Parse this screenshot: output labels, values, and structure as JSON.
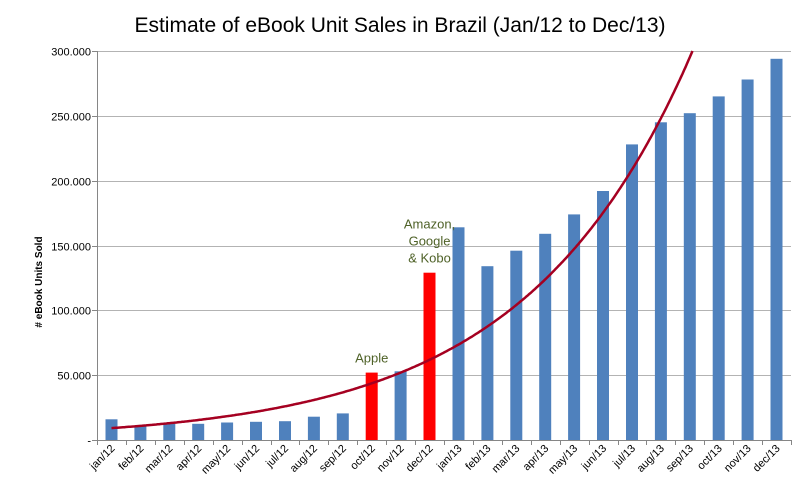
{
  "chart_data": {
    "type": "bar",
    "title": "Estimate of eBook Unit Sales in Brazil (Jan/12 to Dec/13)",
    "xlabel": "",
    "ylabel": "# eBook Units Sold",
    "ylim": [
      0,
      300000
    ],
    "yticks": [
      0,
      50000,
      100000,
      150000,
      200000,
      250000,
      300000
    ],
    "ytick_labels": [
      "-",
      "50.000",
      "100.000",
      "150.000",
      "200.000",
      "250.000",
      "300.000"
    ],
    "grid": true,
    "legend": "none",
    "categories": [
      "jan/12",
      "feb/12",
      "mar/12",
      "apr/12",
      "may/12",
      "jun/12",
      "jul/12",
      "aug/12",
      "sep/12",
      "oct/12",
      "nov/12",
      "dec/12",
      "jan/13",
      "feb/13",
      "mar/13",
      "apr/13",
      "may/13",
      "jun/13",
      "jul/13",
      "aug/13",
      "sep/13",
      "oct/13",
      "nov/13",
      "dec/13"
    ],
    "values": [
      16000,
      11000,
      12500,
      12500,
      13500,
      14000,
      14500,
      18000,
      20500,
      52000,
      53000,
      129000,
      164000,
      134000,
      146000,
      159000,
      174000,
      192000,
      228000,
      245000,
      252000,
      265000,
      278000,
      294000
    ],
    "highlighted_categories": [
      "oct/12",
      "dec/12"
    ],
    "trendline": {
      "type": "exponential",
      "values_at": {
        "jan/12": 9000,
        "jul/12": 27000,
        "jan/13": 72000,
        "jul/13": 205000,
        "sep/13": 300000
      }
    },
    "annotations": [
      {
        "category": "oct/12",
        "text": "Apple"
      },
      {
        "category": "dec/12",
        "text": "Amazon,\nGoogle\n& Kobo"
      }
    ],
    "colors": {
      "bar": "#4F81BD",
      "highlight": "#FF0000",
      "trendline": "#A50021",
      "annotation": "#4F6228",
      "grid": "#B3B3B3",
      "axis": "#868686"
    }
  }
}
